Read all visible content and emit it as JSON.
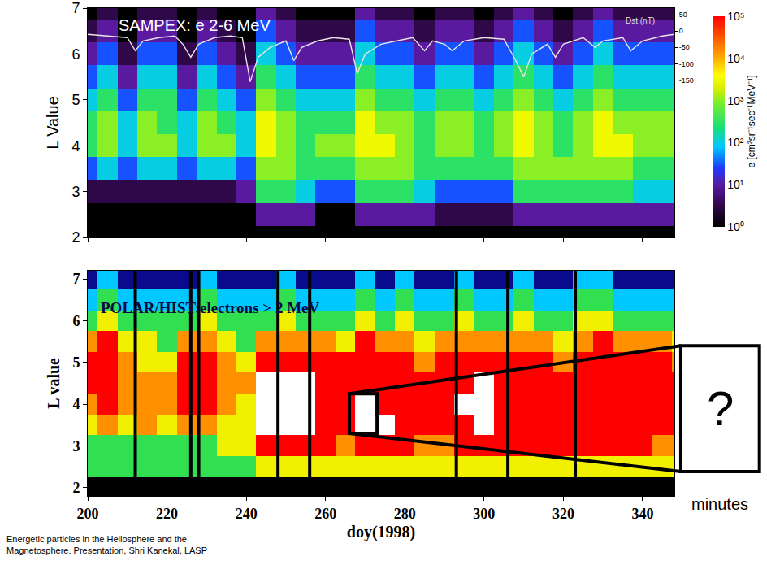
{
  "chart_data": [
    {
      "type": "heatmap",
      "title": "SAMPEX: e 2-6 MeV",
      "y_label": "L Value",
      "x": [
        200,
        205,
        210,
        215,
        220,
        225,
        230,
        235,
        240,
        245,
        250,
        255,
        260,
        265,
        270,
        275,
        280,
        285,
        290,
        295,
        300,
        305,
        310,
        315,
        320,
        325,
        330,
        335,
        340,
        345,
        350
      ],
      "y": [
        2,
        2.5,
        3,
        3.5,
        4,
        4.5,
        5,
        5.5,
        6,
        6.5,
        7
      ],
      "z": [
        [
          1,
          1,
          1,
          1,
          1,
          1,
          1,
          1,
          1,
          1,
          1,
          1,
          1,
          1,
          1,
          1,
          1,
          1,
          1,
          1,
          1,
          1,
          1,
          1,
          1,
          1,
          1,
          1,
          1,
          1,
          1
        ],
        [
          1,
          1,
          1,
          1,
          1,
          1,
          1,
          1,
          1,
          10,
          10,
          10,
          1,
          1,
          10,
          10,
          10,
          10,
          3,
          3,
          3,
          3,
          10,
          10,
          10,
          10,
          10,
          10,
          10,
          10,
          10
        ],
        [
          3,
          3,
          3,
          3,
          3,
          3,
          3,
          3,
          10,
          300,
          300,
          100,
          30,
          30,
          300,
          300,
          300,
          100,
          30,
          30,
          30,
          30,
          300,
          300,
          300,
          300,
          300,
          300,
          100,
          100,
          100
        ],
        [
          30,
          100,
          30,
          100,
          100,
          30,
          100,
          100,
          30,
          1000,
          1000,
          300,
          300,
          300,
          1000,
          1000,
          1000,
          300,
          300,
          300,
          300,
          300,
          1000,
          1000,
          1000,
          1000,
          1000,
          1000,
          300,
          300,
          300
        ],
        [
          300,
          1000,
          100,
          1000,
          1000,
          100,
          1000,
          1000,
          100,
          3000,
          1000,
          300,
          1000,
          1000,
          3000,
          3000,
          1000,
          300,
          1000,
          1000,
          300,
          1000,
          3000,
          1000,
          300,
          1000,
          3000,
          3000,
          1000,
          1000,
          1000
        ],
        [
          300,
          1000,
          100,
          1000,
          300,
          100,
          1000,
          300,
          100,
          3000,
          1000,
          300,
          300,
          300,
          3000,
          1000,
          1000,
          300,
          1000,
          1000,
          300,
          1000,
          3000,
          1000,
          300,
          1000,
          3000,
          1000,
          1000,
          1000,
          1000
        ],
        [
          100,
          300,
          30,
          300,
          300,
          30,
          300,
          100,
          30,
          1000,
          300,
          100,
          100,
          100,
          1000,
          300,
          300,
          100,
          300,
          300,
          100,
          300,
          1000,
          300,
          100,
          300,
          1000,
          300,
          300,
          300,
          300
        ],
        [
          30,
          100,
          10,
          100,
          100,
          10,
          100,
          30,
          10,
          300,
          100,
          30,
          30,
          30,
          300,
          100,
          100,
          30,
          100,
          100,
          30,
          100,
          300,
          100,
          30,
          100,
          300,
          100,
          100,
          100,
          100
        ],
        [
          10,
          30,
          3,
          30,
          30,
          3,
          30,
          10,
          3,
          100,
          30,
          10,
          10,
          10,
          100,
          30,
          30,
          10,
          30,
          30,
          10,
          30,
          100,
          30,
          10,
          30,
          100,
          30,
          30,
          30,
          30
        ],
        [
          3,
          10,
          1,
          10,
          10,
          1,
          10,
          3,
          1,
          30,
          10,
          3,
          3,
          3,
          30,
          10,
          10,
          3,
          10,
          10,
          3,
          10,
          30,
          10,
          3,
          10,
          30,
          10,
          10,
          10,
          10
        ],
        [
          1,
          3,
          1,
          3,
          3,
          1,
          3,
          1,
          1,
          10,
          3,
          1,
          1,
          1,
          10,
          3,
          3,
          1,
          3,
          3,
          1,
          3,
          10,
          3,
          1,
          3,
          10,
          3,
          3,
          3,
          3
        ]
      ],
      "colorbar": {
        "title": "e [cm²sr⁻¹sec⁻¹MeV⁻¹]",
        "range": [
          1,
          100000
        ],
        "log": true,
        "ticks": [
          {
            "value": 1,
            "label": "10⁰"
          },
          {
            "value": 10,
            "label": "10¹"
          },
          {
            "value": 100,
            "label": "10²"
          },
          {
            "value": 1000,
            "label": "10³"
          },
          {
            "value": 10000,
            "label": "10⁴"
          },
          {
            "value": 100000,
            "label": "10⁵"
          }
        ]
      },
      "xlim": [
        200,
        348
      ],
      "xticks": [
        200,
        220,
        240,
        260,
        280,
        300,
        320,
        340
      ],
      "ylim": [
        2,
        7
      ],
      "yticks": [
        2,
        3,
        4,
        5,
        6,
        7
      ],
      "tick_labels": "y",
      "grid": false,
      "y2lim": [
        -630,
        70
      ],
      "y2ticks": [
        50,
        0,
        -50,
        -100,
        -150
      ],
      "series": [
        {
          "name": "Dst (nT)",
          "type": "line",
          "axis": "y2",
          "color": "#e6e6e6",
          "x": [
            200,
            205,
            210,
            212,
            214,
            218,
            222,
            224,
            226,
            228,
            232,
            236,
            239,
            241,
            243,
            246,
            250,
            252,
            254,
            258,
            262,
            266,
            268,
            270,
            274,
            278,
            282,
            285,
            287,
            290,
            292,
            295,
            300,
            305,
            308,
            310,
            312,
            316,
            318,
            320,
            325,
            328,
            330,
            335,
            337,
            340,
            345,
            348
          ],
          "values": [
            -10,
            -15,
            -20,
            -60,
            -30,
            -20,
            -15,
            -40,
            -80,
            -40,
            -20,
            -15,
            -20,
            -155,
            -80,
            -50,
            -30,
            -90,
            -50,
            -30,
            -20,
            -25,
            -130,
            -70,
            -40,
            -30,
            -20,
            -60,
            -30,
            -40,
            -60,
            -30,
            -20,
            -25,
            -90,
            -140,
            -70,
            -40,
            -80,
            -40,
            -20,
            -50,
            -30,
            -20,
            -60,
            -30,
            -15,
            -10
          ]
        }
      ]
    },
    {
      "type": "heatmap",
      "title": "POLAR/HIST:electrons > 2 MeV",
      "x_label": "doy(1998)",
      "y_label": "L value",
      "x": [
        200,
        205,
        210,
        215,
        220,
        225,
        230,
        235,
        240,
        245,
        250,
        255,
        260,
        265,
        270,
        275,
        280,
        285,
        290,
        295,
        300,
        305,
        310,
        315,
        320,
        325,
        330,
        335,
        340,
        345,
        350
      ],
      "y": [
        2,
        2.5,
        3,
        3.5,
        4,
        4.5,
        5,
        5.5,
        6,
        6.5,
        7
      ],
      "z": [
        [
          0,
          0,
          0,
          0,
          0,
          0,
          0,
          0,
          0,
          0,
          0,
          0,
          0,
          0,
          0,
          0,
          0,
          0,
          0,
          0,
          0,
          0,
          0,
          0,
          0,
          0,
          0,
          0,
          0,
          0,
          0
        ],
        [
          3,
          3,
          3,
          3,
          3,
          3,
          3,
          3,
          3,
          4,
          4,
          4,
          4,
          4,
          4,
          4,
          4,
          4,
          4,
          4,
          4,
          4,
          4,
          4,
          4,
          4,
          4,
          4,
          4,
          4,
          4
        ],
        [
          3,
          3,
          3,
          3,
          3,
          3,
          3,
          4,
          4,
          6,
          6,
          6,
          6,
          5,
          6,
          6,
          6,
          5,
          5,
          6,
          6,
          6,
          6,
          6,
          6,
          6,
          6,
          6,
          6,
          5,
          5
        ],
        [
          4,
          5,
          4,
          5,
          4,
          5,
          5,
          4,
          4,
          7,
          7,
          7,
          6,
          6,
          7,
          7,
          6,
          6,
          6,
          6,
          7,
          6,
          6,
          6,
          6,
          6,
          6,
          6,
          6,
          6,
          6
        ],
        [
          5,
          6,
          5,
          5,
          5,
          6,
          6,
          5,
          4,
          7,
          7,
          7,
          6,
          6,
          7,
          6,
          6,
          6,
          6,
          7,
          7,
          6,
          6,
          6,
          6,
          6,
          6,
          6,
          6,
          6,
          6
        ],
        [
          6,
          6,
          5,
          5,
          5,
          6,
          6,
          5,
          5,
          7,
          7,
          7,
          6,
          6,
          6,
          6,
          6,
          6,
          6,
          6,
          7,
          6,
          6,
          6,
          6,
          6,
          6,
          6,
          6,
          6,
          6
        ],
        [
          6,
          6,
          5,
          4,
          4,
          6,
          6,
          5,
          4,
          6,
          6,
          6,
          6,
          6,
          6,
          6,
          6,
          5,
          6,
          6,
          6,
          6,
          6,
          6,
          5,
          6,
          6,
          6,
          6,
          6,
          5
        ],
        [
          5,
          6,
          4,
          4,
          3,
          5,
          5,
          4,
          3,
          5,
          5,
          5,
          5,
          4,
          6,
          5,
          5,
          4,
          5,
          5,
          5,
          5,
          5,
          5,
          4,
          5,
          6,
          5,
          5,
          5,
          4
        ],
        [
          3,
          4,
          3,
          3,
          3,
          3,
          4,
          3,
          3,
          3,
          4,
          3,
          3,
          3,
          4,
          3,
          4,
          3,
          3,
          4,
          3,
          3,
          4,
          3,
          3,
          4,
          4,
          3,
          3,
          3,
          3
        ],
        [
          2,
          3,
          2,
          2,
          2,
          2,
          3,
          2,
          2,
          2,
          3,
          2,
          2,
          2,
          3,
          2,
          3,
          2,
          2,
          3,
          2,
          2,
          3,
          2,
          2,
          3,
          3,
          2,
          2,
          2,
          2
        ],
        [
          1,
          2,
          1,
          1,
          1,
          1,
          2,
          1,
          1,
          1,
          2,
          1,
          1,
          1,
          2,
          1,
          2,
          1,
          1,
          2,
          1,
          1,
          2,
          1,
          1,
          2,
          2,
          1,
          1,
          1,
          1
        ]
      ],
      "zlim": [
        0,
        7
      ],
      "data_gaps": [
        212,
        226,
        228,
        248,
        256,
        293,
        306,
        323
      ],
      "xlim": [
        200,
        348
      ],
      "xticks": [
        200,
        220,
        240,
        260,
        280,
        300,
        320,
        340
      ],
      "ylim": [
        1.8,
        7.2
      ],
      "yticks": [
        2,
        3,
        4,
        5,
        6,
        7
      ],
      "grid": false
    }
  ],
  "zoom": {
    "x": [
      266,
      273
    ],
    "y": [
      3.3,
      4.25
    ],
    "label": "?",
    "caption": "minutes"
  },
  "source": [
    "Energetic particles in the Heliosphere and the",
    "Magnetosphere. Presentation, Shri Kanekal, LASP"
  ]
}
